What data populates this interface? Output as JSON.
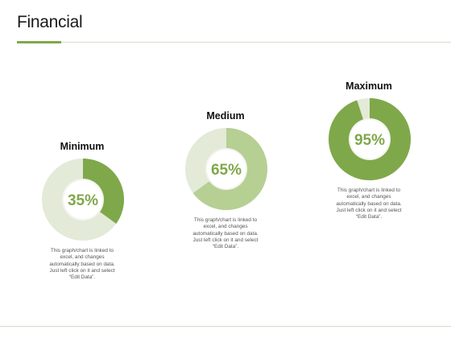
{
  "page": {
    "title": "Financial"
  },
  "colors": {
    "accent": "#7fa84a",
    "medium_fill": "#b6cf93",
    "track": "#e3ead8",
    "center_text": "#7fa84a"
  },
  "chart_data": [
    {
      "type": "pie",
      "label": "Minimum",
      "value": 35,
      "value_text": "35%",
      "color": "#7fa84a",
      "caption": "This graph/chart is linked to\nexcel, and changes\nautomatically based on data.\nJust left click on it and select\n“Edit Data”."
    },
    {
      "type": "pie",
      "label": "Medium",
      "value": 65,
      "value_text": "65%",
      "color": "#b6cf93",
      "caption": "This graph/chart is linked to\nexcel, and changes\nautomatically based on data.\nJust left click on it and select\n“Edit Data”."
    },
    {
      "type": "pie",
      "label": "Maximum",
      "value": 95,
      "value_text": "95%",
      "color": "#7fa84a",
      "caption": "This graph/chart is linked to\nexcel, and changes\nautomatically based on data.\nJust left click on it and select\n“Edit Data”."
    }
  ]
}
